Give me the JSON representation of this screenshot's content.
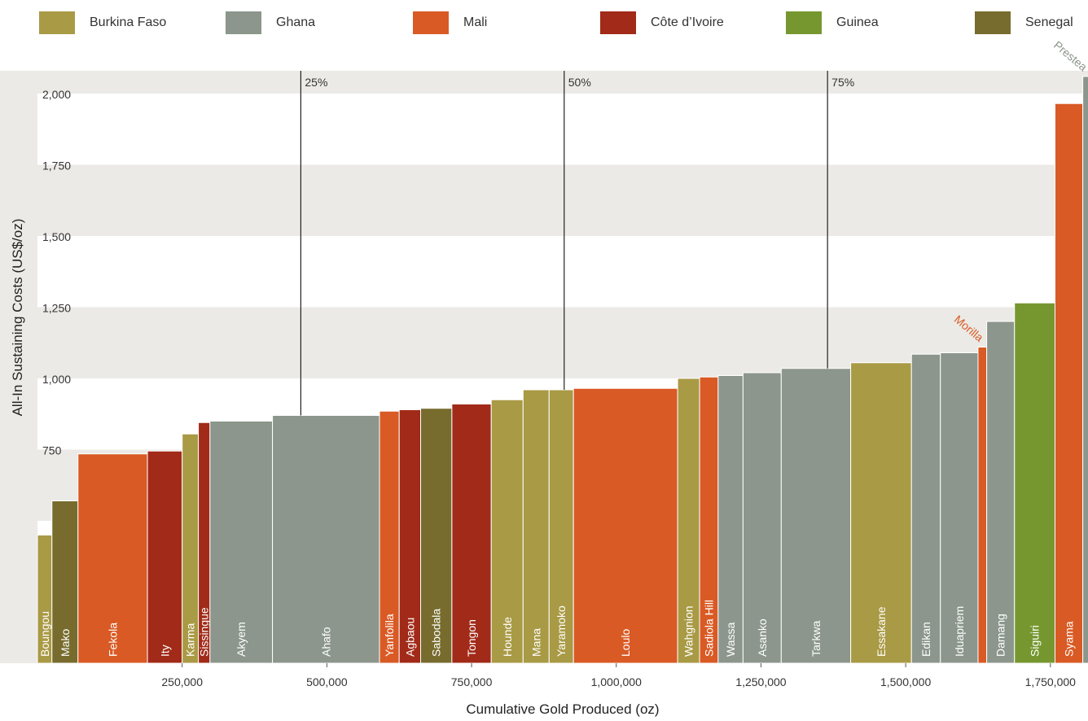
{
  "chart_data": {
    "type": "bar",
    "variant": "cost-curve (variable-width bars, width = gold produced)",
    "xlabel": "Cumulative Gold Produced (oz)",
    "ylabel": "All-In Sustaining Costs (US$/oz)",
    "xlim": [
      0,
      1815000
    ],
    "ylim": [
      0,
      2080
    ],
    "x_ticks": [
      250000,
      500000,
      750000,
      1000000,
      1250000,
      1500000,
      1750000
    ],
    "x_tick_labels": [
      "250,000",
      "500,000",
      "750,000",
      "1,000,000",
      "1,250,000",
      "1,500,000",
      "1,750,000"
    ],
    "y_ticks": [
      750,
      1000,
      1250,
      1500,
      1750,
      2000
    ],
    "y_tick_labels": [
      "750",
      "1,000",
      "1,250",
      "1,500",
      "1,750",
      "2,000"
    ],
    "grid": "alternating horizontal bands",
    "legend_position": "top",
    "countries": [
      {
        "name": "Burkina Faso",
        "color": "#A99A45"
      },
      {
        "name": "Ghana",
        "color": "#8C968C"
      },
      {
        "name": "Mali",
        "color": "#D95A24"
      },
      {
        "name": "Côte d’Ivoire",
        "color": "#A12A18"
      },
      {
        "name": "Guinea",
        "color": "#76972F"
      },
      {
        "name": "Senegal",
        "color": "#776C2D"
      }
    ],
    "percentiles": [
      {
        "label": "25%",
        "x": 455000,
        "y_bottom": 870
      },
      {
        "label": "50%",
        "x": 910000,
        "y_bottom": 960
      },
      {
        "label": "75%",
        "x": 1365000,
        "y_bottom": 1035
      }
    ],
    "mines": [
      {
        "name": "Boungou",
        "country": "Burkina Faso",
        "oz": 25000,
        "aisc": 450
      },
      {
        "name": "Mako",
        "country": "Senegal",
        "oz": 45000,
        "aisc": 570
      },
      {
        "name": "Fekola",
        "country": "Mali",
        "oz": 120000,
        "aisc": 735
      },
      {
        "name": "Ity",
        "country": "Côte d’Ivoire",
        "oz": 60000,
        "aisc": 745
      },
      {
        "name": "Karma",
        "country": "Burkina Faso",
        "oz": 28000,
        "aisc": 805
      },
      {
        "name": "Sissingue",
        "country": "Côte d’Ivoire",
        "oz": 20000,
        "aisc": 845
      },
      {
        "name": "Akyem",
        "country": "Ghana",
        "oz": 108000,
        "aisc": 850
      },
      {
        "name": "Ahafo",
        "country": "Ghana",
        "oz": 185000,
        "aisc": 870
      },
      {
        "name": "Yanfolila",
        "country": "Mali",
        "oz": 34000,
        "aisc": 885
      },
      {
        "name": "Agbaou",
        "country": "Côte d’Ivoire",
        "oz": 37000,
        "aisc": 890
      },
      {
        "name": "Sabodala",
        "country": "Senegal",
        "oz": 54000,
        "aisc": 895
      },
      {
        "name": "Tongon",
        "country": "Côte d’Ivoire",
        "oz": 68000,
        "aisc": 910
      },
      {
        "name": "Hounde",
        "country": "Burkina Faso",
        "oz": 55000,
        "aisc": 925
      },
      {
        "name": "Mana",
        "country": "Burkina Faso",
        "oz": 45000,
        "aisc": 960
      },
      {
        "name": "Yaramoko",
        "country": "Burkina Faso",
        "oz": 42000,
        "aisc": 960
      },
      {
        "name": "Loulo",
        "country": "Mali",
        "oz": 180000,
        "aisc": 965
      },
      {
        "name": "Wahgnion",
        "country": "Burkina Faso",
        "oz": 38000,
        "aisc": 1000
      },
      {
        "name": "Sadiola Hill",
        "country": "Mali",
        "oz": 32000,
        "aisc": 1005
      },
      {
        "name": "Wassa",
        "country": "Ghana",
        "oz": 43000,
        "aisc": 1010
      },
      {
        "name": "Asanko",
        "country": "Ghana",
        "oz": 66000,
        "aisc": 1020
      },
      {
        "name": "Tarkwa",
        "country": "Ghana",
        "oz": 120000,
        "aisc": 1035
      },
      {
        "name": "Essakane",
        "country": "Burkina Faso",
        "oz": 105000,
        "aisc": 1055
      },
      {
        "name": "Edikan",
        "country": "Ghana",
        "oz": 50000,
        "aisc": 1085
      },
      {
        "name": "Iduapriem",
        "country": "Ghana",
        "oz": 65000,
        "aisc": 1090
      },
      {
        "name": "Morilla",
        "country": "Mali",
        "oz": 15000,
        "aisc": 1110
      },
      {
        "name": "Damang",
        "country": "Ghana",
        "oz": 48000,
        "aisc": 1200
      },
      {
        "name": "Siguiri",
        "country": "Guinea",
        "oz": 70000,
        "aisc": 1265
      },
      {
        "name": "Syama",
        "country": "Mali",
        "oz": 48000,
        "aisc": 1965
      },
      {
        "name": "Prestea",
        "country": "Ghana",
        "oz": 12000,
        "aisc": 2060
      }
    ],
    "outside_labels": [
      "Morilla",
      "Prestea"
    ]
  }
}
